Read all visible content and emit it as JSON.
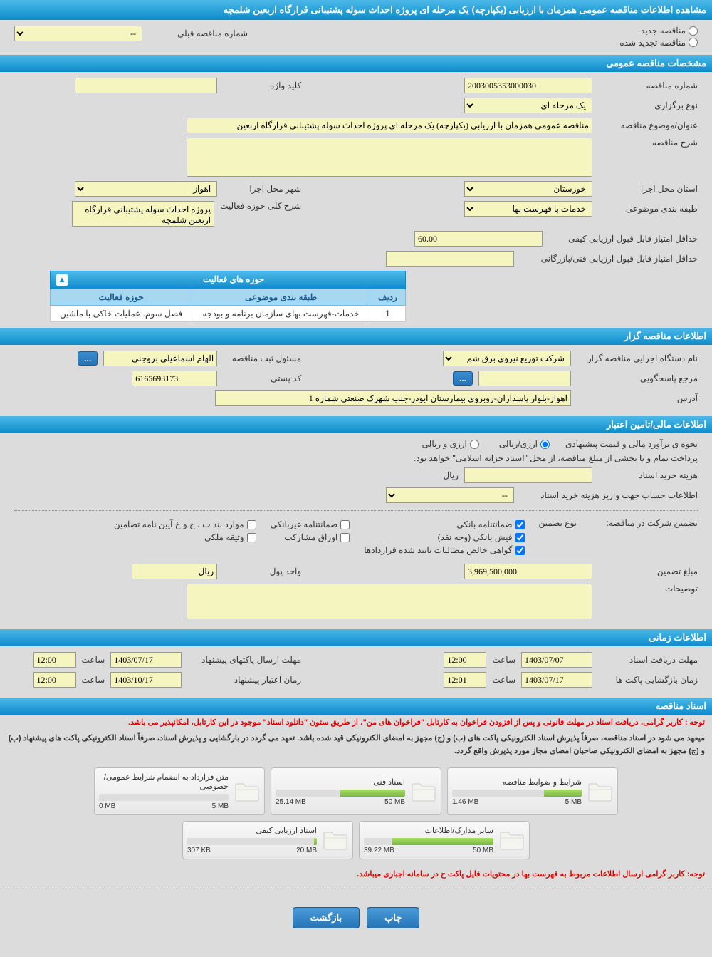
{
  "title": "مشاهده اطلاعات مناقصه عمومی همزمان با ارزیابی (یکپارچه) یک مرحله ای پروژه احداث سوله پشتیبانی قرارگاه اربعین شلمچه",
  "tender_type": {
    "new_label": "مناقصه جدید",
    "renewed_label": "مناقصه تجدید شده",
    "prev_number_label": "شماره مناقصه قبلی",
    "prev_number_value": "--"
  },
  "sections": {
    "general": "مشخصات مناقصه عمومی",
    "organizer": "اطلاعات مناقصه گزار",
    "financial": "اطلاعات مالی/تامین اعتبار",
    "timing": "اطلاعات زمانی",
    "documents": "اسناد مناقصه"
  },
  "general": {
    "number_label": "شماره مناقصه",
    "number_value": "2003005353000030",
    "type_label": "نوع برگزاری",
    "type_value": "یک مرحله ای",
    "keyword_label": "کلید واژه",
    "keyword_value": "",
    "subject_label": "عنوان/موضوع مناقصه",
    "subject_value": "مناقصه عمومی همزمان با ارزیابی (یکپارچه) یک مرحله ای پروژه احداث سوله پشتیبانی قرارگاه اربعین",
    "desc_label": "شرح مناقصه",
    "desc_value": "",
    "province_label": "استان محل اجرا",
    "province_value": "خوزستان",
    "city_label": "شهر محل اجرا",
    "city_value": "اهواز",
    "category_label": "طبقه بندی موضوعی",
    "category_value": "خدمات با فهرست بها",
    "activity_desc_label": "شرح کلی حوزه فعالیت",
    "activity_desc_value": "پروژه احداث سوله پشتیبانی قرارگاه اربعین شلمچه",
    "min_quality_score_label": "حداقل امتیاز قابل قبول ارزیابی کیفی",
    "min_quality_score_value": "60.00",
    "min_tech_score_label": "حداقل امتیاز قابل قبول ارزیابی فنی/بازرگانی",
    "min_tech_score_value": ""
  },
  "activity_table": {
    "header": "حوزه های فعالیت",
    "col_row": "ردیف",
    "col_category": "طبقه بندی موضوعی",
    "col_scope": "حوزه فعالیت",
    "row_num": "1",
    "row_category": "خدمات-فهرست بهای سازمان برنامه و بودجه",
    "row_scope": "فصل سوم. عملیات خاکی با ماشین"
  },
  "organizer": {
    "agency_label": "نام دستگاه اجرایی مناقصه گزار",
    "agency_value": "شرکت توزیع نیروی برق شم",
    "registrar_label": "مسئول ثبت مناقصه",
    "registrar_value": "الهام اسماعیلی بروجنی",
    "reply_label": "مرجع پاسخگویی",
    "reply_value": "",
    "postal_label": "کد پستی",
    "postal_value": "6165693173",
    "address_label": "آدرس",
    "address_value": "اهواز-بلوار پاسداران-روبروی بیمارستان ابوذر-جنب شهرک صنعتی شماره 1",
    "more_btn": "..."
  },
  "financial": {
    "estimate_label": "نحوه ی برآورد مالی و قیمت پیشنهادی",
    "currency_rial": "ارزی/ریالی",
    "currency_foreign": "ارزی و ریالی",
    "treasury_note": "پرداخت تمام و یا بخشی از مبلغ مناقصه، از محل \"اسناد خزانه اسلامی\" خواهد بود.",
    "doc_fee_label": "هزینه خرید اسناد",
    "doc_fee_unit": "ریال",
    "doc_fee_value": "",
    "account_label": "اطلاعات حساب جهت واریز هزینه خرید اسناد",
    "account_value": "--",
    "guarantee_label": "تضمین شرکت در مناقصه:",
    "guarantee_type_label": "نوع تضمین",
    "bank_guarantee": "ضمانتنامه بانکی",
    "nonbank_guarantee": "ضمانتنامه غیربانکی",
    "bylaw_items": "موارد بند ب ، ج و خ آیین نامه تضامین",
    "bank_receipt": "فیش بانکی (وجه نقد)",
    "securities": "اوراق مشارکت",
    "property_mortgage": "وثیقه ملکی",
    "contract_receivables": "گواهی خالص مطالبات تایید شده قراردادها",
    "guarantee_amount_label": "مبلغ تضمین",
    "guarantee_amount_value": "3,969,500,000",
    "money_unit_label": "واحد پول",
    "money_unit_value": "ریال",
    "notes_label": "توضیحات",
    "notes_value": ""
  },
  "timing": {
    "receive_deadline_label": "مهلت دریافت اسناد",
    "receive_date": "1403/07/07",
    "receive_time": "12:00",
    "send_deadline_label": "مهلت ارسال پاکتهای پیشنهاد",
    "send_date": "1403/07/17",
    "send_time": "12:00",
    "open_time_label": "زمان بازگشایی پاکت ها",
    "open_date": "1403/07/17",
    "open_time": "12:01",
    "validity_label": "زمان اعتبار پیشنهاد",
    "validity_date": "1403/10/17",
    "validity_time": "12:00",
    "time_label": "ساعت"
  },
  "documents": {
    "warning1": "توجه : کاربر گرامی، دریافت اسناد در مهلت قانونی و پس از افزودن فراخوان به کارتابل \"فراخوان های من\"، از طریق ستون \"دانلود اسناد\" موجود در این کارتابل، امکانپذیر می باشد.",
    "note1": "میعهد می شود در اسناد مناقصه، صرفاً پذیرش اسناد الکترونیکی پاکت های (ب) و (ج) مجهز به امضای الکترونیکی قید شده باشد. تعهد می گردد در بارگشایی و پذیرش اسناد، صرفاً اسناد الکترونیکی پاکت های پیشنهاد (ب) و (ج) مجهز به امضای الکترونیکی صاحبان امضای مجاز مورد پذیرش واقع گردد.",
    "files": [
      {
        "title": "شرایط و ضوابط مناقصه",
        "used": "1.46 MB",
        "total": "5 MB",
        "fill_pct": 29
      },
      {
        "title": "اسناد فنی",
        "used": "25.14 MB",
        "total": "50 MB",
        "fill_pct": 50
      },
      {
        "title": "متن قرارداد به انضمام شرایط عمومی/خصوصی",
        "used": "0 MB",
        "total": "5 MB",
        "fill_pct": 0
      },
      {
        "title": "سایر مدارک/اطلاعات",
        "used": "39.22 MB",
        "total": "50 MB",
        "fill_pct": 78
      },
      {
        "title": "اسناد ارزیابی کیفی",
        "used": "307 KB",
        "total": "20 MB",
        "fill_pct": 2
      }
    ],
    "warning2": "توجه: کاربر گرامی ارسال اطلاعات مربوط به فهرست بها در محتویات فایل پاکت ج در سامانه اجباری میباشد."
  },
  "buttons": {
    "print": "چاپ",
    "back": "بازگشت"
  },
  "colors": {
    "header_blue": "#2ba3da",
    "yellow_input": "#f5f5c0",
    "warning_red": "#d00000",
    "progress_green": "#8bc34a"
  }
}
